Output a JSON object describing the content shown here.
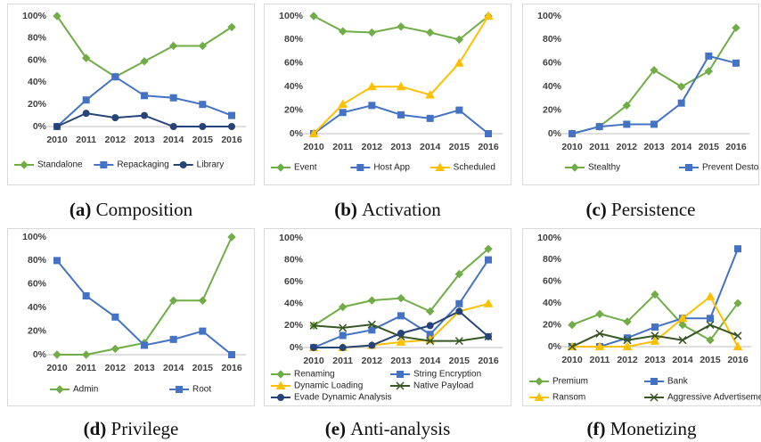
{
  "chart_data": [
    {
      "type": "line",
      "label": "(a)",
      "caption": "Composition",
      "categories": [
        "2010",
        "2011",
        "2012",
        "2013",
        "2014",
        "2015",
        "2016"
      ],
      "ylim": [
        0,
        100
      ],
      "yticks": [
        {
          "value": 0,
          "label": "0%"
        },
        {
          "value": 20,
          "label": "20%"
        },
        {
          "value": 40,
          "label": "40%"
        },
        {
          "value": 60,
          "label": "60%"
        },
        {
          "value": 80,
          "label": "80%"
        },
        {
          "value": 100,
          "label": "100%"
        }
      ],
      "series": [
        {
          "name": "Standalone",
          "color": "#70ad47",
          "marker": "diamond",
          "values": [
            100,
            62,
            45,
            59,
            73,
            73,
            90
          ]
        },
        {
          "name": "Repackaging",
          "color": "#4472c4",
          "marker": "square",
          "values": [
            0,
            24,
            45,
            28,
            26,
            20,
            10
          ]
        },
        {
          "name": "Library",
          "color": "#264478",
          "marker": "circle",
          "values": [
            0,
            12,
            8,
            10,
            0,
            0,
            0
          ]
        }
      ]
    },
    {
      "type": "line",
      "label": "(b)",
      "caption": "Activation",
      "categories": [
        "2010",
        "2011",
        "2012",
        "2013",
        "2014",
        "2015",
        "2016"
      ],
      "ylim": [
        0,
        100
      ],
      "yticks": [
        {
          "value": 0,
          "label": "0%"
        },
        {
          "value": 20,
          "label": "20%"
        },
        {
          "value": 40,
          "label": "40%"
        },
        {
          "value": 60,
          "label": "60%"
        },
        {
          "value": 80,
          "label": "80%"
        },
        {
          "value": 100,
          "label": "100%"
        }
      ],
      "series": [
        {
          "name": "Event",
          "color": "#70ad47",
          "marker": "diamond",
          "values": [
            100,
            87,
            86,
            91,
            86,
            80,
            100
          ]
        },
        {
          "name": "Host App",
          "color": "#4472c4",
          "marker": "square",
          "values": [
            0,
            18,
            24,
            16,
            13,
            20,
            0
          ]
        },
        {
          "name": "Scheduled",
          "color": "#ffc000",
          "marker": "triangle",
          "values": [
            0,
            25,
            40,
            40,
            33,
            60,
            100
          ]
        }
      ]
    },
    {
      "type": "line",
      "label": "(c)",
      "caption": "Persistence",
      "categories": [
        "2010",
        "2011",
        "2012",
        "2013",
        "2014",
        "2015",
        "2016"
      ],
      "ylim": [
        0,
        100
      ],
      "yticks": [
        {
          "value": 0,
          "label": "0%"
        },
        {
          "value": 20,
          "label": "20%"
        },
        {
          "value": 40,
          "label": "40%"
        },
        {
          "value": 60,
          "label": "60%"
        },
        {
          "value": 80,
          "label": "80%"
        },
        {
          "value": 100,
          "label": "100%"
        }
      ],
      "series": [
        {
          "name": "Stealthy",
          "color": "#70ad47",
          "marker": "diamond",
          "values": [
            0,
            6,
            24,
            54,
            40,
            53,
            90
          ]
        },
        {
          "name": "Prevent Destory",
          "color": "#4472c4",
          "marker": "square",
          "values": [
            0,
            6,
            8,
            8,
            26,
            66,
            60
          ]
        }
      ]
    },
    {
      "type": "line",
      "label": "(d)",
      "caption": "Privilege",
      "categories": [
        "2010",
        "2011",
        "2012",
        "2013",
        "2014",
        "2015",
        "2016"
      ],
      "ylim": [
        0,
        100
      ],
      "yticks": [
        {
          "value": 0,
          "label": "0%"
        },
        {
          "value": 20,
          "label": "20%"
        },
        {
          "value": 40,
          "label": "40%"
        },
        {
          "value": 60,
          "label": "60%"
        },
        {
          "value": 80,
          "label": "80%"
        },
        {
          "value": 100,
          "label": "100%"
        }
      ],
      "series": [
        {
          "name": "Admin",
          "color": "#70ad47",
          "marker": "diamond",
          "values": [
            0,
            0,
            5,
            10,
            46,
            46,
            100
          ]
        },
        {
          "name": "Root",
          "color": "#4472c4",
          "marker": "square",
          "values": [
            80,
            50,
            32,
            8,
            13,
            20,
            0
          ]
        }
      ]
    },
    {
      "type": "line",
      "label": "(e)",
      "caption": "Anti-analysis",
      "categories": [
        "2010",
        "2011",
        "2012",
        "2013",
        "2014",
        "2015",
        "2016"
      ],
      "ylim": [
        0,
        100
      ],
      "yticks": [
        {
          "value": 0,
          "label": "0%"
        },
        {
          "value": 20,
          "label": "20%"
        },
        {
          "value": 40,
          "label": "40%"
        },
        {
          "value": 60,
          "label": "60%"
        },
        {
          "value": 80,
          "label": "80%"
        },
        {
          "value": 100,
          "label": "100%"
        }
      ],
      "series": [
        {
          "name": "Renaming",
          "color": "#70ad47",
          "marker": "diamond",
          "values": [
            20,
            37,
            43,
            45,
            33,
            67,
            90
          ]
        },
        {
          "name": "String Encryption",
          "color": "#4472c4",
          "marker": "square",
          "values": [
            0,
            11,
            16,
            29,
            12,
            40,
            80
          ]
        },
        {
          "name": "Dynamic Loading",
          "color": "#ffc000",
          "marker": "triangle",
          "values": [
            0,
            0,
            2,
            5,
            7,
            33,
            40
          ]
        },
        {
          "name": "Native Payload",
          "color": "#375623",
          "marker": "x",
          "values": [
            20,
            18,
            21,
            10,
            6,
            6,
            10
          ]
        },
        {
          "name": "Evade Dynamic Analysis",
          "color": "#264478",
          "marker": "circle",
          "values": [
            0,
            0,
            2,
            13,
            20,
            33,
            10
          ]
        }
      ]
    },
    {
      "type": "line",
      "label": "(f)",
      "caption": "Monetizing",
      "categories": [
        "2010",
        "2011",
        "2012",
        "2013",
        "2014",
        "2015",
        "2016"
      ],
      "ylim": [
        0,
        100
      ],
      "yticks": [
        {
          "value": 0,
          "label": "0%"
        },
        {
          "value": 20,
          "label": "20%"
        },
        {
          "value": 40,
          "label": "40%"
        },
        {
          "value": 60,
          "label": "60%"
        },
        {
          "value": 80,
          "label": "80%"
        },
        {
          "value": 100,
          "label": "100%"
        }
      ],
      "series": [
        {
          "name": "Premium",
          "color": "#70ad47",
          "marker": "diamond",
          "values": [
            20,
            30,
            23,
            48,
            20,
            6,
            40
          ]
        },
        {
          "name": "Bank",
          "color": "#4472c4",
          "marker": "square",
          "values": [
            0,
            0,
            8,
            18,
            26,
            26,
            90
          ]
        },
        {
          "name": "Ransom",
          "color": "#ffc000",
          "marker": "triangle",
          "values": [
            0,
            0,
            0,
            5,
            26,
            46,
            0
          ]
        },
        {
          "name": "Aggressive Advertisement",
          "color": "#375623",
          "marker": "x",
          "values": [
            0,
            12,
            6,
            10,
            6,
            20,
            10
          ]
        }
      ]
    }
  ]
}
